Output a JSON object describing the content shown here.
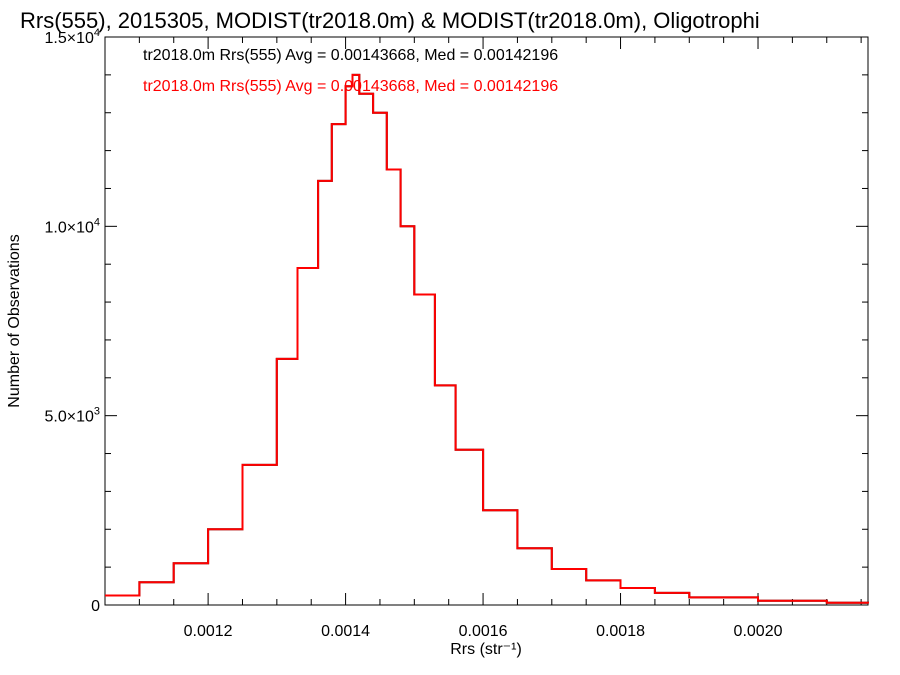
{
  "chart_data": {
    "type": "histogram",
    "title": "Rrs(555), 2015305, MODIST(tr2018.0m) & MODIST(tr2018.0m), Oligotrophi",
    "xlabel": "Rrs (str⁻¹)",
    "ylabel": "Number of Observations",
    "xlim": [
      0.00105,
      0.00216
    ],
    "ylim": [
      0,
      15000
    ],
    "x_ticks": [
      0.0012,
      0.0014,
      0.0016,
      0.0018,
      0.002
    ],
    "x_tick_labels": [
      "0.0012",
      "0.0014",
      "0.0016",
      "0.0018",
      "0.0020"
    ],
    "y_ticks": [
      0,
      5000,
      10000,
      15000
    ],
    "y_tick_labels": [
      {
        "mantissa": "0",
        "exp": ""
      },
      {
        "mantissa": "5.0×10",
        "exp": "3"
      },
      {
        "mantissa": "1.0×10",
        "exp": "4"
      },
      {
        "mantissa": "1.5×10",
        "exp": "4"
      }
    ],
    "grid": false,
    "legend_position": "top-left",
    "series": [
      {
        "name": "tr2018.0m Rrs(555) Avg = 0.00143668, Med = 0.00142196",
        "color": "#000000",
        "x": [
          0.00105,
          0.0011,
          0.00115,
          0.0012,
          0.00125,
          0.0013,
          0.00133,
          0.00136,
          0.00138,
          0.0014,
          0.00141,
          0.00142,
          0.00144,
          0.00146,
          0.00148,
          0.0015,
          0.00153,
          0.00156,
          0.0016,
          0.00165,
          0.0017,
          0.00175,
          0.0018,
          0.00185,
          0.0019,
          0.002,
          0.0021,
          0.00216
        ],
        "y": [
          250,
          600,
          1100,
          2000,
          3700,
          6500,
          8900,
          11200,
          12700,
          13700,
          14000,
          13500,
          13000,
          11500,
          10000,
          8200,
          5800,
          4100,
          2500,
          1500,
          950,
          650,
          450,
          320,
          200,
          110,
          60,
          40
        ]
      },
      {
        "name": "tr2018.0m Rrs(555) Avg = 0.00143668, Med = 0.00142196",
        "color": "#ff0000",
        "x": [
          0.00105,
          0.0011,
          0.00115,
          0.0012,
          0.00125,
          0.0013,
          0.00133,
          0.00136,
          0.00138,
          0.0014,
          0.00141,
          0.00142,
          0.00144,
          0.00146,
          0.00148,
          0.0015,
          0.00153,
          0.00156,
          0.0016,
          0.00165,
          0.0017,
          0.00175,
          0.0018,
          0.00185,
          0.0019,
          0.002,
          0.0021,
          0.00216
        ],
        "y": [
          250,
          600,
          1100,
          2000,
          3700,
          6500,
          8900,
          11200,
          12700,
          13700,
          14000,
          13500,
          13000,
          11500,
          10000,
          8200,
          5800,
          4100,
          2500,
          1500,
          950,
          650,
          450,
          320,
          200,
          110,
          60,
          40
        ]
      }
    ]
  }
}
